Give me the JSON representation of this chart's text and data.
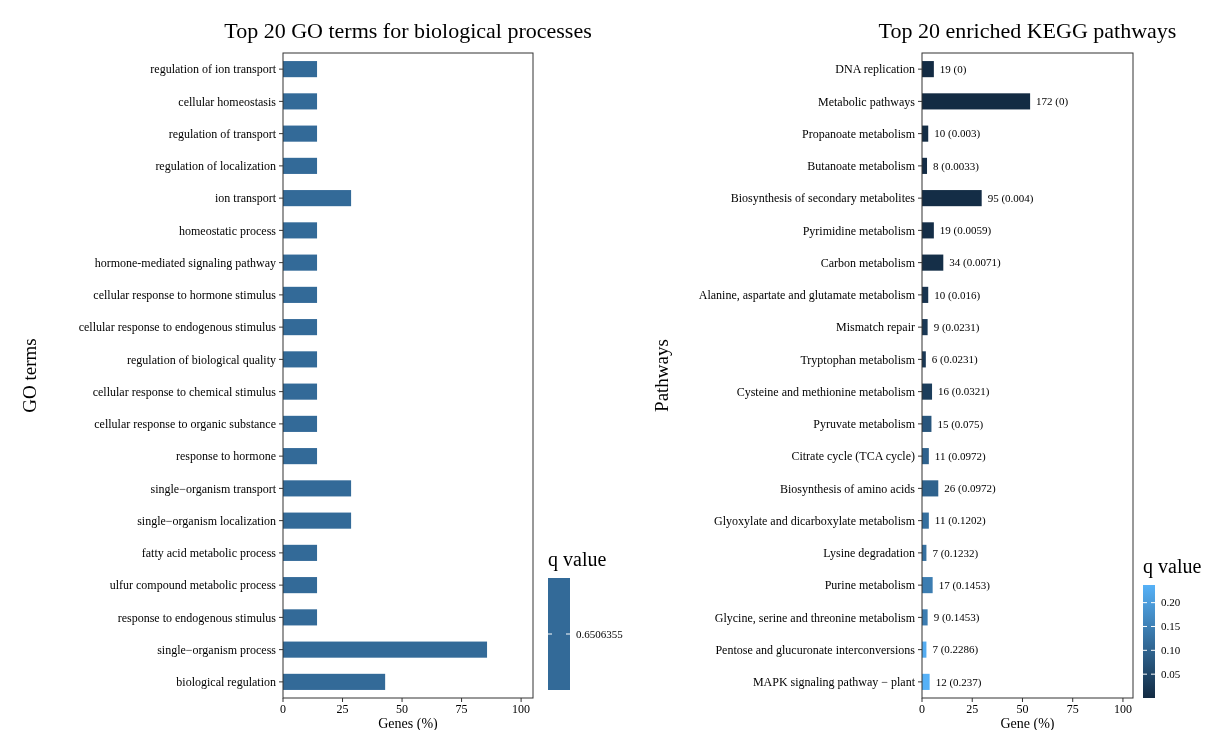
{
  "chart_data": [
    {
      "type": "bar",
      "orientation": "horizontal",
      "title": "Top 20 GO terms for biological processes",
      "xlabel": "Genes (%)",
      "ylabel": "GO terms",
      "categories": [
        "regulation of ion transport",
        "cellular homeostasis",
        "regulation of transport",
        "regulation of localization",
        "ion transport",
        "homeostatic process",
        "hormone-mediated signaling pathway",
        "cellular response to hormone stimulus",
        "cellular response to endogenous stimulus",
        "regulation of biological quality",
        "cellular response to chemical stimulus",
        "cellular response to organic substance",
        "response to hormone",
        "single−organism transport",
        "single−organism localization",
        "fatty acid metabolic process",
        "ulfur compound metabolic process",
        "response to endogenous stimulus",
        "single−organism process",
        "biological regulation"
      ],
      "values": [
        14.3,
        14.3,
        14.3,
        14.3,
        28.6,
        14.3,
        14.3,
        14.3,
        14.3,
        14.3,
        14.3,
        14.3,
        14.3,
        28.6,
        28.6,
        14.3,
        14.3,
        14.3,
        85.7,
        42.9
      ],
      "annotations": [
        "0.6506355"
      ],
      "colors": [
        "#336a98",
        "#336a98",
        "#336a98",
        "#336a98",
        "#336a98",
        "#336a98",
        "#336a98",
        "#336a98",
        "#336a98",
        "#336a98",
        "#336a98",
        "#336a98",
        "#336a98",
        "#336a98",
        "#336a98",
        "#336a98",
        "#336a98",
        "#336a98",
        "#336a98",
        "#336a98"
      ],
      "clabel": "q value",
      "xlim": [
        0,
        105
      ],
      "xticks": [
        0,
        25,
        50,
        75,
        100
      ]
    },
    {
      "type": "bar",
      "orientation": "horizontal",
      "title": "Top 20 enriched KEGG pathways",
      "xlabel": "Gene (%)",
      "ylabel": "Pathways",
      "categories": [
        "DNA replication",
        "Metabolic pathways",
        "Propanoate metabolism",
        "Butanoate metabolism",
        "Biosynthesis of secondary metabolites",
        "Pyrimidine metabolism",
        "Carbon metabolism",
        "Alanine, aspartate and glutamate metabolism",
        "Mismatch repair",
        "Tryptophan metabolism",
        "Cysteine and methionine metabolism",
        "Pyruvate metabolism",
        "Citrate cycle (TCA cycle)",
        "Biosynthesis of amino acids",
        "Glyoxylate and dicarboxylate metabolism",
        "Lysine degradation",
        "Purine metabolism",
        "Glycine, serine and threonine metabolism",
        "Pentose and glucuronate interconversions",
        "MAPK signaling pathway − plant"
      ],
      "values": [
        5.9,
        53.8,
        3.1,
        2.5,
        29.7,
        5.9,
        10.6,
        3.1,
        2.8,
        1.9,
        5.0,
        4.7,
        3.4,
        8.1,
        3.4,
        2.2,
        5.3,
        2.8,
        2.2,
        3.8
      ],
      "annotations": [
        {
          "text": "19 (0)",
          "x": 5.9,
          "y": "DNA replication"
        },
        {
          "text": "172 (0)",
          "x": 53.8,
          "y": "Metabolic pathways"
        },
        {
          "text": "10 (0.003)",
          "x": 3.1,
          "y": "Propanoate metabolism"
        },
        {
          "text": "8 (0.0033)",
          "x": 2.5,
          "y": "Butanoate metabolism"
        },
        {
          "text": "95 (0.004)",
          "x": 29.7,
          "y": "Biosynthesis of secondary metabolites"
        },
        {
          "text": "19 (0.0059)",
          "x": 5.9,
          "y": "Pyrimidine metabolism"
        },
        {
          "text": "34 (0.0071)",
          "x": 10.6,
          "y": "Carbon metabolism"
        },
        {
          "text": "10 (0.016)",
          "x": 3.1,
          "y": "Alanine, aspartate and glutamate metabolism"
        },
        {
          "text": "9 (0.0231)",
          "x": 2.8,
          "y": "Mismatch repair"
        },
        {
          "text": "6 (0.0231)",
          "x": 1.9,
          "y": "Tryptophan metabolism"
        },
        {
          "text": "16 (0.0321)",
          "x": 5.0,
          "y": "Cysteine and methionine metabolism"
        },
        {
          "text": "15 (0.075)",
          "x": 4.7,
          "y": "Pyruvate metabolism"
        },
        {
          "text": "11 (0.0972)",
          "x": 3.4,
          "y": "Citrate cycle (TCA cycle)"
        },
        {
          "text": "26 (0.0972)",
          "x": 8.1,
          "y": "Biosynthesis of amino acids"
        },
        {
          "text": "11 (0.1202)",
          "x": 3.4,
          "y": "Glyoxylate and dicarboxylate metabolism"
        },
        {
          "text": "7 (0.1232)",
          "x": 2.2,
          "y": "Lysine degradation"
        },
        {
          "text": "17 (0.1453)",
          "x": 5.3,
          "y": "Purine metabolism"
        },
        {
          "text": "9 (0.1453)",
          "x": 2.8,
          "y": "Glycine, serine and threonine metabolism"
        },
        {
          "text": "7 (0.2286)",
          "x": 2.2,
          "y": "Pentose and glucuronate interconversions"
        },
        {
          "text": "12 (0.237)",
          "x": 3.8,
          "y": "MAPK signaling pathway − plant"
        }
      ],
      "colors": [
        "#132b43",
        "#132b43",
        "#142d45",
        "#142d46",
        "#142d46",
        "#152e47",
        "#152f48",
        "#18344f",
        "#1a3855",
        "#1a3855",
        "#1c3d5b",
        "#28557c",
        "#2f628d",
        "#2f628d",
        "#356f9e",
        "#3671a1",
        "#3c7db1",
        "#3c7db1",
        "#54acf1",
        "#56b1f7"
      ],
      "clabel": "q value",
      "clim": [
        0,
        0.237
      ],
      "cticks": [
        {
          "value": 0.05,
          "label": "0.05"
        },
        {
          "value": 0.1,
          "label": "0.10"
        },
        {
          "value": 0.15,
          "label": "0.15"
        },
        {
          "value": 0.2,
          "label": "0.20"
        }
      ],
      "xlim": [
        0,
        105
      ],
      "xticks": [
        0,
        25,
        50,
        75,
        100
      ]
    }
  ]
}
